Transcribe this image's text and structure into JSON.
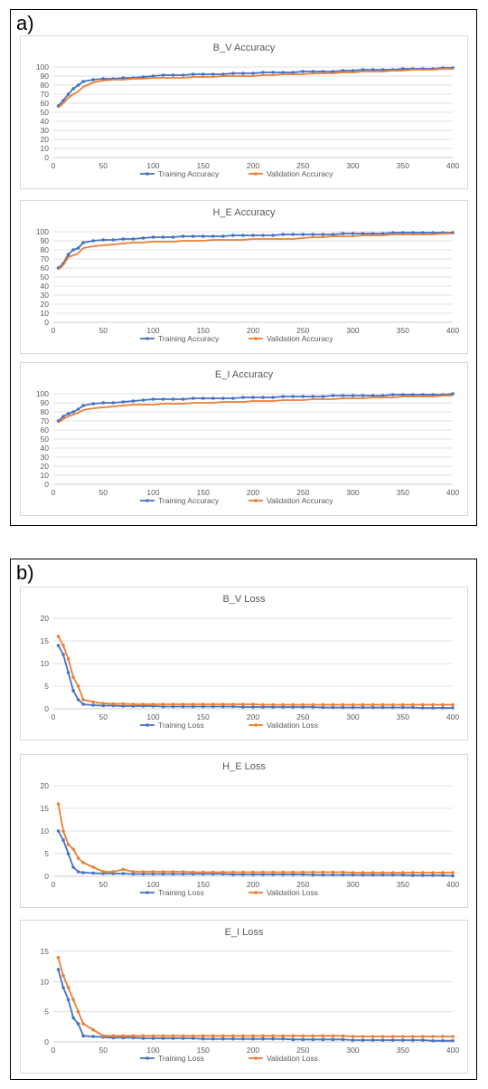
{
  "panels": [
    {
      "label": "a)"
    },
    {
      "label": "b)"
    }
  ],
  "colors": {
    "training": "#4472c4",
    "validation": "#ed7d31",
    "grid": "#d9d9d9",
    "axis": "#bfbfbf"
  },
  "chart_data": [
    {
      "type": "line",
      "title": "B_V Accuracy",
      "xlim": [
        0,
        400
      ],
      "ylim": [
        0,
        100
      ],
      "xticks": [
        "0",
        "50",
        "100",
        "150",
        "200",
        "250",
        "300",
        "350",
        "400"
      ],
      "yticks": [
        "0",
        "10",
        "20",
        "30",
        "40",
        "50",
        "60",
        "70",
        "80",
        "90",
        "100"
      ],
      "grid": true,
      "legend": "bottom",
      "x": [
        5,
        10,
        15,
        20,
        25,
        30,
        40,
        50,
        60,
        70,
        80,
        90,
        100,
        110,
        120,
        130,
        140,
        150,
        160,
        170,
        180,
        190,
        200,
        210,
        220,
        230,
        240,
        250,
        260,
        270,
        280,
        290,
        300,
        310,
        320,
        330,
        340,
        350,
        360,
        370,
        380,
        390,
        400
      ],
      "series": [
        {
          "name": "Training Accuracy",
          "markers": true,
          "values": [
            57,
            63,
            70,
            76,
            80,
            84,
            86,
            87,
            87,
            88,
            88,
            89,
            90,
            91,
            91,
            91,
            92,
            92,
            92,
            92,
            93,
            93,
            93,
            94,
            94,
            94,
            94,
            95,
            95,
            95,
            95,
            96,
            96,
            97,
            97,
            97,
            97,
            98,
            98,
            98,
            98,
            99,
            99
          ]
        },
        {
          "name": "Validation Accuracy",
          "markers": false,
          "values": [
            55,
            60,
            66,
            70,
            73,
            78,
            83,
            85,
            86,
            86,
            87,
            87,
            88,
            88,
            88,
            88,
            89,
            89,
            89,
            90,
            90,
            90,
            90,
            91,
            91,
            92,
            92,
            92,
            93,
            93,
            93,
            94,
            94,
            95,
            95,
            95,
            96,
            96,
            97,
            97,
            97,
            98,
            98
          ]
        }
      ]
    },
    {
      "type": "line",
      "title": "H_E Accuracy",
      "xlim": [
        0,
        400
      ],
      "ylim": [
        0,
        100
      ],
      "xticks": [
        "0",
        "50",
        "100",
        "150",
        "200",
        "250",
        "300",
        "350",
        "400"
      ],
      "yticks": [
        "0",
        "10",
        "20",
        "30",
        "40",
        "50",
        "60",
        "70",
        "80",
        "90",
        "100"
      ],
      "grid": true,
      "legend": "bottom",
      "x": [
        5,
        10,
        15,
        20,
        25,
        30,
        40,
        50,
        60,
        70,
        80,
        90,
        100,
        110,
        120,
        130,
        140,
        150,
        160,
        170,
        180,
        190,
        200,
        210,
        220,
        230,
        240,
        250,
        260,
        270,
        280,
        290,
        300,
        310,
        320,
        330,
        340,
        350,
        360,
        370,
        380,
        390,
        400
      ],
      "series": [
        {
          "name": "Training Accuracy",
          "markers": true,
          "values": [
            60,
            65,
            75,
            80,
            82,
            88,
            90,
            91,
            91,
            92,
            92,
            93,
            94,
            94,
            94,
            95,
            95,
            95,
            95,
            95,
            96,
            96,
            96,
            96,
            96,
            97,
            97,
            97,
            97,
            97,
            97,
            98,
            98,
            98,
            98,
            98,
            99,
            99,
            99,
            99,
            99,
            99,
            99
          ]
        },
        {
          "name": "Validation Accuracy",
          "markers": false,
          "values": [
            58,
            63,
            72,
            74,
            76,
            82,
            84,
            85,
            86,
            87,
            88,
            88,
            89,
            89,
            89,
            90,
            90,
            90,
            91,
            91,
            91,
            91,
            92,
            92,
            92,
            92,
            92,
            93,
            94,
            94,
            95,
            95,
            95,
            96,
            96,
            96,
            97,
            97,
            97,
            97,
            97,
            98,
            98
          ]
        }
      ]
    },
    {
      "type": "line",
      "title": "E_I Accuracy",
      "xlim": [
        0,
        400
      ],
      "ylim": [
        0,
        100
      ],
      "xticks": [
        "0",
        "50",
        "100",
        "150",
        "200",
        "250",
        "300",
        "350",
        "400"
      ],
      "yticks": [
        "0",
        "10",
        "20",
        "30",
        "40",
        "50",
        "60",
        "70",
        "80",
        "90",
        "100"
      ],
      "grid": true,
      "legend": "bottom",
      "x": [
        5,
        10,
        15,
        20,
        25,
        30,
        40,
        50,
        60,
        70,
        80,
        90,
        100,
        110,
        120,
        130,
        140,
        150,
        160,
        170,
        180,
        190,
        200,
        210,
        220,
        230,
        240,
        250,
        260,
        270,
        280,
        290,
        300,
        310,
        320,
        330,
        340,
        350,
        360,
        370,
        380,
        390,
        400
      ],
      "series": [
        {
          "name": "Training Accuracy",
          "markers": true,
          "values": [
            70,
            75,
            78,
            80,
            83,
            87,
            89,
            90,
            90,
            91,
            92,
            93,
            94,
            94,
            94,
            94,
            95,
            95,
            95,
            95,
            95,
            96,
            96,
            96,
            96,
            97,
            97,
            97,
            97,
            97,
            98,
            98,
            98,
            98,
            98,
            98,
            99,
            99,
            99,
            99,
            99,
            99,
            100
          ]
        },
        {
          "name": "Validation Accuracy",
          "markers": false,
          "values": [
            68,
            72,
            75,
            77,
            79,
            82,
            84,
            85,
            86,
            87,
            88,
            88,
            88,
            89,
            89,
            89,
            90,
            90,
            90,
            91,
            91,
            91,
            92,
            92,
            92,
            93,
            93,
            93,
            94,
            94,
            94,
            95,
            95,
            95,
            96,
            96,
            96,
            97,
            97,
            97,
            97,
            98,
            98
          ]
        }
      ]
    },
    {
      "type": "line",
      "title": "B_V Loss",
      "xlim": [
        0,
        400
      ],
      "ylim": [
        0,
        20
      ],
      "xticks": [
        "0",
        "50",
        "100",
        "150",
        "200",
        "250",
        "300",
        "350",
        "400"
      ],
      "yticks": [
        "0",
        "5",
        "10",
        "15",
        "20"
      ],
      "grid": true,
      "legend": "bottom",
      "x": [
        5,
        10,
        15,
        20,
        25,
        30,
        40,
        50,
        60,
        70,
        80,
        90,
        100,
        110,
        120,
        130,
        140,
        150,
        160,
        170,
        180,
        190,
        200,
        210,
        220,
        230,
        240,
        250,
        260,
        270,
        280,
        290,
        300,
        310,
        320,
        330,
        340,
        350,
        360,
        370,
        380,
        390,
        400
      ],
      "series": [
        {
          "name": "Training Loss",
          "markers": true,
          "values": [
            14,
            12,
            8,
            4,
            2,
            1,
            0.8,
            0.7,
            0.7,
            0.6,
            0.6,
            0.6,
            0.6,
            0.5,
            0.5,
            0.5,
            0.5,
            0.5,
            0.5,
            0.5,
            0.5,
            0.4,
            0.4,
            0.4,
            0.4,
            0.4,
            0.4,
            0.4,
            0.4,
            0.3,
            0.3,
            0.3,
            0.3,
            0.3,
            0.3,
            0.3,
            0.3,
            0.3,
            0.3,
            0.2,
            0.2,
            0.2,
            0.2
          ]
        },
        {
          "name": "Validation Loss",
          "markers": true,
          "values": [
            16,
            14,
            11,
            7,
            5,
            2,
            1.5,
            1.2,
            1.1,
            1.1,
            1,
            1,
            1,
            1,
            1,
            1,
            1,
            1,
            1,
            1,
            1,
            1,
            1,
            0.9,
            0.9,
            0.9,
            0.9,
            0.9,
            0.9,
            0.9,
            0.9,
            0.9,
            0.9,
            0.9,
            0.9,
            0.9,
            0.9,
            0.9,
            0.9,
            0.9,
            0.9,
            0.9,
            0.9
          ]
        }
      ]
    },
    {
      "type": "line",
      "title": "H_E Loss",
      "xlim": [
        0,
        400
      ],
      "ylim": [
        0,
        20
      ],
      "xticks": [
        "0",
        "50",
        "100",
        "150",
        "200",
        "250",
        "300",
        "350",
        "400"
      ],
      "yticks": [
        "0",
        "5",
        "10",
        "15",
        "20"
      ],
      "grid": true,
      "legend": "bottom",
      "x": [
        5,
        10,
        15,
        20,
        25,
        30,
        40,
        50,
        60,
        70,
        80,
        90,
        100,
        110,
        120,
        130,
        140,
        150,
        160,
        170,
        180,
        190,
        200,
        210,
        220,
        230,
        240,
        250,
        260,
        270,
        280,
        290,
        300,
        310,
        320,
        330,
        340,
        350,
        360,
        370,
        380,
        390,
        400
      ],
      "series": [
        {
          "name": "Training Loss",
          "markers": true,
          "values": [
            10,
            8,
            5,
            2,
            1,
            0.8,
            0.7,
            0.6,
            0.6,
            0.6,
            0.5,
            0.5,
            0.5,
            0.5,
            0.5,
            0.5,
            0.5,
            0.5,
            0.5,
            0.5,
            0.4,
            0.4,
            0.4,
            0.4,
            0.4,
            0.4,
            0.4,
            0.4,
            0.3,
            0.3,
            0.3,
            0.3,
            0.3,
            0.3,
            0.3,
            0.3,
            0.3,
            0.3,
            0.2,
            0.2,
            0.2,
            0.2,
            0.1
          ]
        },
        {
          "name": "Validation Loss",
          "markers": true,
          "values": [
            16,
            10,
            7,
            6,
            4,
            3,
            2,
            1,
            1,
            1.5,
            1,
            1,
            1,
            1,
            1,
            1,
            0.9,
            0.9,
            0.9,
            0.9,
            0.9,
            0.9,
            0.9,
            0.9,
            0.9,
            0.9,
            0.9,
            0.9,
            0.9,
            0.9,
            0.9,
            0.9,
            0.8,
            0.8,
            0.8,
            0.8,
            0.8,
            0.8,
            0.8,
            0.8,
            0.8,
            0.8,
            0.8
          ]
        }
      ]
    },
    {
      "type": "line",
      "title": "E_I Loss",
      "xlim": [
        0,
        400
      ],
      "ylim": [
        0,
        15
      ],
      "xticks": [
        "0",
        "50",
        "100",
        "150",
        "200",
        "250",
        "300",
        "350",
        "400"
      ],
      "yticks": [
        "0",
        "5",
        "10",
        "15"
      ],
      "grid": true,
      "legend": "bottom",
      "x": [
        5,
        10,
        15,
        20,
        25,
        30,
        40,
        50,
        60,
        70,
        80,
        90,
        100,
        110,
        120,
        130,
        140,
        150,
        160,
        170,
        180,
        190,
        200,
        210,
        220,
        230,
        240,
        250,
        260,
        270,
        280,
        290,
        300,
        310,
        320,
        330,
        340,
        350,
        360,
        370,
        380,
        390,
        400
      ],
      "series": [
        {
          "name": "Training Loss",
          "markers": true,
          "values": [
            12,
            9,
            7,
            4,
            3,
            1,
            0.9,
            0.8,
            0.7,
            0.7,
            0.7,
            0.6,
            0.6,
            0.6,
            0.6,
            0.6,
            0.6,
            0.5,
            0.5,
            0.5,
            0.5,
            0.5,
            0.5,
            0.5,
            0.5,
            0.5,
            0.4,
            0.4,
            0.4,
            0.4,
            0.4,
            0.4,
            0.3,
            0.3,
            0.3,
            0.3,
            0.3,
            0.3,
            0.3,
            0.3,
            0.2,
            0.2,
            0.2
          ]
        },
        {
          "name": "Validation Loss",
          "markers": true,
          "values": [
            14,
            11,
            9,
            7,
            5,
            3,
            2,
            1,
            1,
            1,
            1,
            1,
            1,
            1,
            1,
            1,
            1,
            1,
            1,
            1,
            1,
            1,
            1,
            1,
            1,
            1,
            1,
            1,
            1,
            1,
            1,
            1,
            0.9,
            0.9,
            0.9,
            0.9,
            0.9,
            0.9,
            0.9,
            0.9,
            0.9,
            0.9,
            0.9
          ]
        }
      ]
    }
  ]
}
